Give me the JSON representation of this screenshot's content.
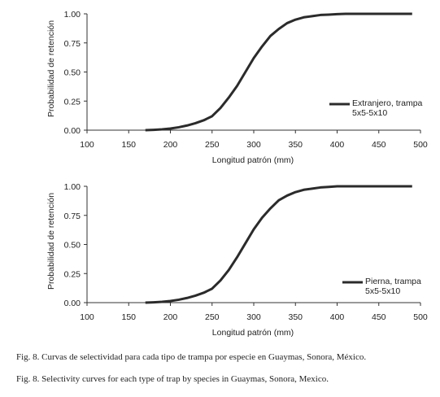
{
  "chart_data": [
    {
      "type": "line",
      "xlabel": "Longitud patrón (mm)",
      "ylabel": "Probabilidad de retención",
      "xlim": [
        100,
        500
      ],
      "xticks": [
        100,
        150,
        200,
        250,
        300,
        350,
        400,
        450,
        500
      ],
      "ylim": [
        0,
        1
      ],
      "yticks": [
        {
          "value": 0,
          "label": "0.00"
        },
        {
          "value": 0.25,
          "label": "0.25"
        },
        {
          "value": 0.5,
          "label": "0.50"
        },
        {
          "value": 0.75,
          "label": "0.75"
        },
        {
          "value": 1,
          "label": "1.00"
        }
      ],
      "x": [
        170,
        180,
        190,
        200,
        210,
        220,
        230,
        240,
        250,
        260,
        270,
        280,
        290,
        300,
        310,
        320,
        330,
        340,
        350,
        360,
        370,
        380,
        390,
        400,
        410,
        420,
        430,
        440,
        450,
        460,
        470,
        480,
        490
      ],
      "series": [
        {
          "name": "Extranjero, trampa 5x5-5x10",
          "color": "#2b2b2b",
          "values": [
            0,
            0.003,
            0.007,
            0.014,
            0.025,
            0.04,
            0.06,
            0.085,
            0.12,
            0.19,
            0.28,
            0.38,
            0.5,
            0.62,
            0.72,
            0.81,
            0.87,
            0.92,
            0.95,
            0.97,
            0.98,
            0.99,
            0.993,
            0.997,
            1,
            1,
            1,
            1,
            1,
            1,
            1,
            1,
            1
          ]
        }
      ]
    },
    {
      "type": "line",
      "xlabel": "Longitud patrón (mm)",
      "ylabel": "Probabilidad de retención",
      "xlim": [
        100,
        500
      ],
      "xticks": [
        100,
        150,
        200,
        250,
        300,
        350,
        400,
        450,
        500
      ],
      "ylim": [
        0,
        1
      ],
      "yticks": [
        {
          "value": 0,
          "label": "0.00"
        },
        {
          "value": 0.25,
          "label": "0.25"
        },
        {
          "value": 0.5,
          "label": "0.50"
        },
        {
          "value": 0.75,
          "label": "0.75"
        },
        {
          "value": 1,
          "label": "1.00"
        }
      ],
      "x": [
        170,
        180,
        190,
        200,
        210,
        220,
        230,
        240,
        250,
        260,
        270,
        280,
        290,
        300,
        310,
        320,
        330,
        340,
        350,
        360,
        370,
        380,
        390,
        400,
        410,
        420,
        430,
        440,
        450,
        460,
        470,
        480,
        490
      ],
      "series": [
        {
          "name": "Pierna, trampa 5x5-5x10",
          "color": "#2b2b2b",
          "values": [
            0,
            0.003,
            0.007,
            0.014,
            0.025,
            0.04,
            0.06,
            0.085,
            0.12,
            0.19,
            0.28,
            0.39,
            0.51,
            0.63,
            0.73,
            0.81,
            0.88,
            0.92,
            0.95,
            0.97,
            0.98,
            0.99,
            0.995,
            1,
            1,
            1,
            1,
            1,
            1,
            1,
            1,
            1,
            1
          ]
        }
      ]
    }
  ],
  "captions": [
    "Fig. 8. Curvas de selectividad para cada tipo de trampa por especie en Guaymas, Sonora, México.",
    "Fig. 8. Selectivity curves for each type of trap by species in Guaymas, Sonora, Mexico."
  ]
}
